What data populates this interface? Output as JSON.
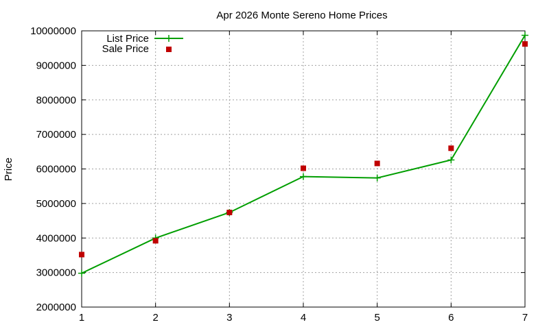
{
  "chart_data": {
    "type": "line",
    "title": "Apr 2026 Monte Sereno Home Prices",
    "xlabel": "",
    "ylabel": "Price",
    "x": [
      1,
      2,
      3,
      4,
      5,
      6,
      7
    ],
    "xlim": [
      1,
      7
    ],
    "ylim": [
      2000000,
      10000000
    ],
    "xticks": [
      "1",
      "2",
      "3",
      "4",
      "5",
      "6",
      "7"
    ],
    "yticks": [
      "2000000",
      "3000000",
      "4000000",
      "5000000",
      "6000000",
      "7000000",
      "8000000",
      "9000000",
      "10000000"
    ],
    "grid": true,
    "legend_position": "top-left",
    "series": [
      {
        "name": "List Price",
        "style": "line-with-plus-markers",
        "color": "#009e00",
        "values": [
          2980000,
          4000000,
          4740000,
          5780000,
          5740000,
          6260000,
          9870000
        ]
      },
      {
        "name": "Sale Price",
        "style": "square-markers",
        "color": "#c00000",
        "values": [
          3520000,
          3920000,
          4740000,
          6020000,
          6160000,
          6600000,
          9620000
        ]
      }
    ]
  }
}
